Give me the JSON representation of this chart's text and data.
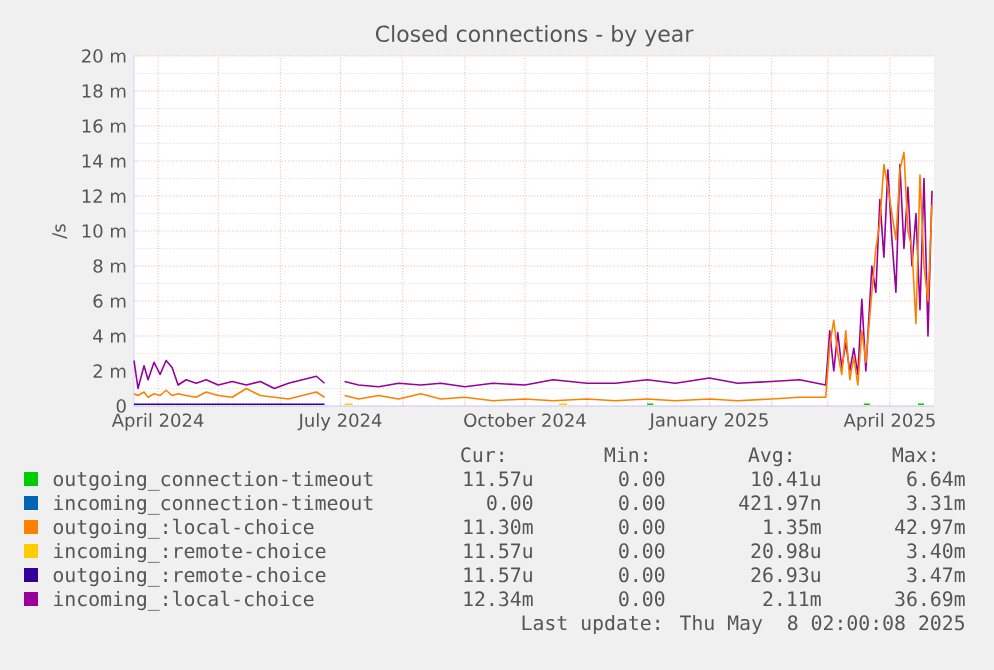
{
  "chart_data": {
    "type": "line",
    "title": "Closed connections - by year",
    "ylabel": "/s",
    "xlim": [
      "2024-03-20",
      "2025-04-23"
    ],
    "xticks": [
      {
        "value": "2024-04-01",
        "label": "April 2024"
      },
      {
        "value": "2024-05-01",
        "label": null
      },
      {
        "value": "2024-06-01",
        "label": null
      },
      {
        "value": "2024-07-01",
        "label": "July 2024"
      },
      {
        "value": "2024-08-01",
        "label": null
      },
      {
        "value": "2024-09-01",
        "label": null
      },
      {
        "value": "2024-10-01",
        "label": "October 2024"
      },
      {
        "value": "2024-11-01",
        "label": null
      },
      {
        "value": "2024-12-01",
        "label": null
      },
      {
        "value": "2025-01-01",
        "label": "January 2025"
      },
      {
        "value": "2025-02-01",
        "label": null
      },
      {
        "value": "2025-03-01",
        "label": null
      },
      {
        "value": "2025-04-01",
        "label": "April 2025"
      }
    ],
    "ylim": [
      0,
      20
    ],
    "yticks": [
      0,
      {
        "value": 2,
        "label": "2 m"
      },
      {
        "value": 4,
        "label": "4 m"
      },
      {
        "value": 6,
        "label": "6 m"
      },
      {
        "value": 8,
        "label": "8 m"
      },
      {
        "value": 10,
        "label": "10 m"
      },
      {
        "value": 12,
        "label": "12 m"
      },
      {
        "value": 14,
        "label": "14 m"
      },
      {
        "value": 16,
        "label": "16 m"
      },
      {
        "value": 18,
        "label": "18 m"
      },
      {
        "value": 20,
        "label": "20 m"
      }
    ],
    "grid": true,
    "legend": "bottom",
    "series": [
      {
        "name": "outgoing_connection-timeout",
        "color": "#00cc00",
        "x": [
          "2024-12-01",
          "2024-12-04",
          "2024-12-05",
          "2025-03-19",
          "2025-03-22",
          "2025-03-23",
          "2025-04-15",
          "2025-04-18"
        ],
        "values": [
          0.1,
          0.1,
          null,
          0.1,
          0.1,
          null,
          0.1,
          0.1
        ]
      },
      {
        "name": "incoming_connection-timeout",
        "color": "#0066b3"
      },
      {
        "name": "outgoing_:local-choice",
        "color": "#ff8000",
        "x": [
          "2024-03-20",
          "2024-03-22",
          "2024-03-25",
          "2024-03-27",
          "2024-03-30",
          "2024-04-02",
          "2024-04-05",
          "2024-04-08",
          "2024-04-11",
          "2024-04-15",
          "2024-04-20",
          "2024-04-25",
          "2024-05-01",
          "2024-05-08",
          "2024-05-15",
          "2024-05-22",
          "2024-05-29",
          "2024-06-05",
          "2024-06-12",
          "2024-06-19",
          "2024-06-23",
          "2024-06-26",
          "2024-07-03",
          "2024-07-10",
          "2024-07-20",
          "2024-07-30",
          "2024-08-10",
          "2024-08-20",
          "2024-09-01",
          "2024-09-15",
          "2024-10-01",
          "2024-10-15",
          "2024-11-01",
          "2024-11-15",
          "2024-12-01",
          "2024-12-15",
          "2025-01-01",
          "2025-01-15",
          "2025-02-01",
          "2025-02-15",
          "2025-02-28",
          "2025-03-02",
          "2025-03-04",
          "2025-03-06",
          "2025-03-08",
          "2025-03-10",
          "2025-03-12",
          "2025-03-14",
          "2025-03-16",
          "2025-03-18",
          "2025-03-20",
          "2025-03-23",
          "2025-03-25",
          "2025-03-27",
          "2025-03-29",
          "2025-03-31",
          "2025-04-02",
          "2025-04-04",
          "2025-04-06",
          "2025-04-08",
          "2025-04-10",
          "2025-04-12",
          "2025-04-14",
          "2025-04-16",
          "2025-04-18",
          "2025-04-20",
          "2025-04-22"
        ],
        "values": [
          0.7,
          0.6,
          0.8,
          0.5,
          0.7,
          0.6,
          0.9,
          0.6,
          0.7,
          0.6,
          0.5,
          0.8,
          0.6,
          0.5,
          1.0,
          0.6,
          0.5,
          0.4,
          0.6,
          0.8,
          0.5,
          null,
          0.6,
          0.4,
          0.6,
          0.4,
          0.7,
          0.4,
          0.5,
          0.3,
          0.4,
          0.3,
          0.4,
          0.3,
          0.4,
          0.3,
          0.4,
          0.3,
          0.4,
          0.5,
          0.5,
          3.5,
          4.9,
          3.0,
          1.8,
          4.3,
          1.5,
          2.8,
          1.2,
          4.3,
          2.5,
          6.5,
          9.0,
          10.5,
          13.8,
          12.5,
          11.0,
          9.5,
          13.5,
          14.5,
          10.0,
          9.0,
          4.7,
          13.2,
          8.0,
          6.0,
          11.5
        ]
      },
      {
        "name": "incoming_:remote-choice",
        "color": "#ffcc00",
        "x": [
          "2024-07-03",
          "2024-07-07",
          "2024-07-08",
          "2024-10-18",
          "2024-10-22"
        ],
        "values": [
          0.1,
          0.1,
          null,
          0.1,
          0.1
        ]
      },
      {
        "name": "outgoing_:remote-choice",
        "color": "#330099",
        "x": [
          "2024-03-20",
          "2024-04-15",
          "2024-05-20",
          "2024-06-23"
        ],
        "values": [
          0.1,
          0.1,
          0.1,
          0.1
        ]
      },
      {
        "name": "incoming_:local-choice",
        "color": "#990099",
        "x": [
          "2024-03-20",
          "2024-03-22",
          "2024-03-25",
          "2024-03-27",
          "2024-03-30",
          "2024-04-02",
          "2024-04-05",
          "2024-04-08",
          "2024-04-11",
          "2024-04-15",
          "2024-04-20",
          "2024-04-25",
          "2024-05-01",
          "2024-05-08",
          "2024-05-15",
          "2024-05-22",
          "2024-05-29",
          "2024-06-05",
          "2024-06-12",
          "2024-06-19",
          "2024-06-23",
          "2024-06-26",
          "2024-07-03",
          "2024-07-10",
          "2024-07-20",
          "2024-07-30",
          "2024-08-10",
          "2024-08-20",
          "2024-09-01",
          "2024-09-15",
          "2024-10-01",
          "2024-10-15",
          "2024-11-01",
          "2024-11-15",
          "2024-12-01",
          "2024-12-15",
          "2025-01-01",
          "2025-01-15",
          "2025-02-01",
          "2025-02-15",
          "2025-02-28",
          "2025-03-02",
          "2025-03-04",
          "2025-03-06",
          "2025-03-08",
          "2025-03-10",
          "2025-03-12",
          "2025-03-14",
          "2025-03-16",
          "2025-03-18",
          "2025-03-20",
          "2025-03-23",
          "2025-03-25",
          "2025-03-27",
          "2025-03-29",
          "2025-03-31",
          "2025-04-02",
          "2025-04-04",
          "2025-04-06",
          "2025-04-08",
          "2025-04-10",
          "2025-04-12",
          "2025-04-14",
          "2025-04-16",
          "2025-04-18",
          "2025-04-20",
          "2025-04-22"
        ],
        "values": [
          2.6,
          1.0,
          2.3,
          1.5,
          2.5,
          1.8,
          2.6,
          2.2,
          1.2,
          1.5,
          1.3,
          1.5,
          1.2,
          1.4,
          1.2,
          1.4,
          1.0,
          1.3,
          1.5,
          1.7,
          1.3,
          null,
          1.4,
          1.2,
          1.1,
          1.3,
          1.2,
          1.3,
          1.1,
          1.3,
          1.2,
          1.5,
          1.3,
          1.3,
          1.5,
          1.3,
          1.6,
          1.3,
          1.4,
          1.5,
          1.2,
          4.3,
          2.0,
          4.2,
          2.2,
          3.6,
          2.0,
          3.3,
          1.8,
          6.1,
          2.0,
          8.0,
          6.5,
          11.8,
          8.5,
          13.5,
          9.5,
          6.5,
          13.8,
          9.0,
          12.5,
          8.0,
          11.0,
          5.5,
          13.0,
          4.0,
          12.3
        ]
      }
    ],
    "annotations": [
      "Cur:",
      "Min:",
      "Avg:",
      "Max:",
      "11.57u",
      "0.00",
      "10.41u",
      "6.64m",
      "0.00",
      "0.00",
      "421.97n",
      "3.31m",
      "11.30m",
      "0.00",
      "1.35m",
      "42.97m",
      "11.57u",
      "0.00",
      "20.98u",
      "3.40m",
      "11.57u",
      "0.00",
      "26.93u",
      "3.47m",
      "12.34m",
      "0.00",
      "2.11m",
      "36.69m",
      "Last update: Thu May  8 02:00:08 2025"
    ]
  }
}
